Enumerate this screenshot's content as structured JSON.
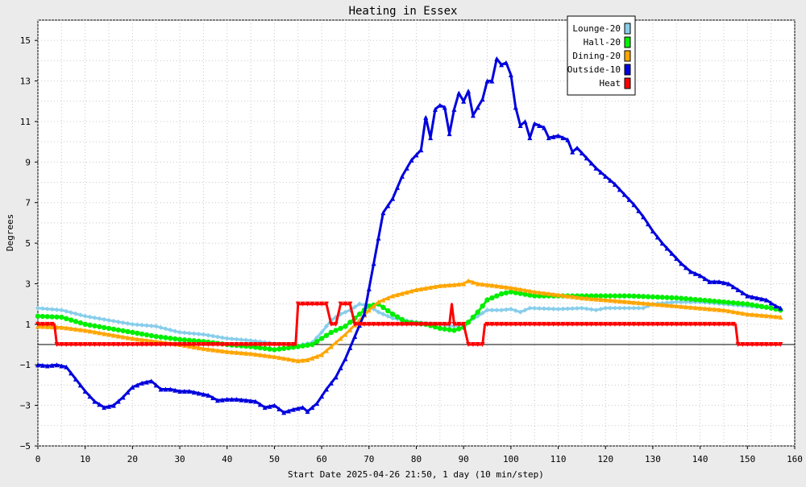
{
  "chart_data": {
    "type": "line",
    "title": "Heating in Essex",
    "xlabel": "Start Date 2025-04-26 21:50, 1 day (10 min/step)",
    "ylabel": "Degrees",
    "xlim": [
      0,
      160
    ],
    "ylim": [
      -5,
      16
    ],
    "x_ticks": [
      0,
      10,
      20,
      30,
      40,
      50,
      60,
      70,
      80,
      90,
      100,
      110,
      120,
      130,
      140,
      150,
      160
    ],
    "y_ticks": [
      -5,
      -3,
      -1,
      1,
      3,
      5,
      7,
      9,
      11,
      13,
      15
    ],
    "grid": true,
    "legend_position": "top-right",
    "series": [
      {
        "name": "Lounge-20",
        "color": "#87ceeb",
        "marker": "diamond",
        "points": [
          [
            0,
            1.8
          ],
          [
            5,
            1.7
          ],
          [
            10,
            1.4
          ],
          [
            15,
            1.2
          ],
          [
            20,
            1.0
          ],
          [
            25,
            0.9
          ],
          [
            30,
            0.6
          ],
          [
            35,
            0.5
          ],
          [
            40,
            0.3
          ],
          [
            45,
            0.2
          ],
          [
            50,
            0.05
          ],
          [
            55,
            -0.05
          ],
          [
            58,
            0.1
          ],
          [
            60,
            0.6
          ],
          [
            62,
            1.2
          ],
          [
            64,
            1.5
          ],
          [
            66,
            1.7
          ],
          [
            68,
            2.0
          ],
          [
            70,
            1.9
          ],
          [
            72,
            1.6
          ],
          [
            75,
            1.3
          ],
          [
            80,
            1.1
          ],
          [
            85,
            1.0
          ],
          [
            88,
            0.9
          ],
          [
            90,
            1.0
          ],
          [
            93,
            1.4
          ],
          [
            95,
            1.7
          ],
          [
            98,
            1.7
          ],
          [
            100,
            1.75
          ],
          [
            102,
            1.6
          ],
          [
            104,
            1.8
          ],
          [
            110,
            1.75
          ],
          [
            115,
            1.8
          ],
          [
            118,
            1.7
          ],
          [
            120,
            1.8
          ],
          [
            125,
            1.8
          ],
          [
            128,
            1.8
          ],
          [
            130,
            2.0
          ],
          [
            135,
            2.1
          ],
          [
            140,
            2.1
          ],
          [
            145,
            2.0
          ],
          [
            150,
            1.9
          ],
          [
            155,
            1.8
          ],
          [
            157,
            1.7
          ]
        ]
      },
      {
        "name": "Hall-20",
        "color": "#00ee00",
        "marker": "circle",
        "points": [
          [
            0,
            1.4
          ],
          [
            5,
            1.35
          ],
          [
            10,
            1.0
          ],
          [
            15,
            0.8
          ],
          [
            20,
            0.6
          ],
          [
            25,
            0.4
          ],
          [
            30,
            0.25
          ],
          [
            35,
            0.15
          ],
          [
            40,
            0.0
          ],
          [
            45,
            -0.1
          ],
          [
            50,
            -0.25
          ],
          [
            55,
            -0.1
          ],
          [
            58,
            0.0
          ],
          [
            60,
            0.3
          ],
          [
            62,
            0.6
          ],
          [
            65,
            0.9
          ],
          [
            68,
            1.5
          ],
          [
            70,
            1.9
          ],
          [
            72,
            2.0
          ],
          [
            75,
            1.5
          ],
          [
            78,
            1.1
          ],
          [
            82,
            1.0
          ],
          [
            85,
            0.8
          ],
          [
            88,
            0.7
          ],
          [
            90,
            0.85
          ],
          [
            93,
            1.6
          ],
          [
            95,
            2.2
          ],
          [
            98,
            2.5
          ],
          [
            100,
            2.6
          ],
          [
            105,
            2.4
          ],
          [
            110,
            2.4
          ],
          [
            115,
            2.4
          ],
          [
            120,
            2.4
          ],
          [
            125,
            2.4
          ],
          [
            130,
            2.35
          ],
          [
            135,
            2.3
          ],
          [
            140,
            2.2
          ],
          [
            145,
            2.1
          ],
          [
            150,
            2.0
          ],
          [
            155,
            1.8
          ],
          [
            157,
            1.7
          ]
        ]
      },
      {
        "name": "Dining-20",
        "color": "#ffa500",
        "marker": "triangle",
        "points": [
          [
            0,
            0.9
          ],
          [
            5,
            0.85
          ],
          [
            10,
            0.7
          ],
          [
            15,
            0.5
          ],
          [
            20,
            0.3
          ],
          [
            25,
            0.15
          ],
          [
            30,
            0.0
          ],
          [
            35,
            -0.2
          ],
          [
            40,
            -0.35
          ],
          [
            45,
            -0.45
          ],
          [
            50,
            -0.6
          ],
          [
            55,
            -0.8
          ],
          [
            57,
            -0.75
          ],
          [
            60,
            -0.5
          ],
          [
            62,
            -0.1
          ],
          [
            65,
            0.5
          ],
          [
            68,
            1.2
          ],
          [
            70,
            1.7
          ],
          [
            72,
            2.1
          ],
          [
            75,
            2.4
          ],
          [
            80,
            2.7
          ],
          [
            85,
            2.9
          ],
          [
            88,
            2.95
          ],
          [
            90,
            3.0
          ],
          [
            91,
            3.15
          ],
          [
            93,
            3.0
          ],
          [
            95,
            2.95
          ],
          [
            100,
            2.8
          ],
          [
            105,
            2.6
          ],
          [
            110,
            2.45
          ],
          [
            115,
            2.3
          ],
          [
            120,
            2.2
          ],
          [
            125,
            2.1
          ],
          [
            130,
            2.0
          ],
          [
            135,
            1.9
          ],
          [
            140,
            1.8
          ],
          [
            145,
            1.7
          ],
          [
            150,
            1.5
          ],
          [
            155,
            1.4
          ],
          [
            157,
            1.35
          ]
        ]
      },
      {
        "name": "Outside-10",
        "color": "#0000dd",
        "marker": "triangle",
        "points": [
          [
            0,
            -1.0
          ],
          [
            2,
            -1.05
          ],
          [
            4,
            -1.0
          ],
          [
            6,
            -1.1
          ],
          [
            8,
            -1.7
          ],
          [
            10,
            -2.3
          ],
          [
            12,
            -2.8
          ],
          [
            14,
            -3.1
          ],
          [
            16,
            -3.0
          ],
          [
            18,
            -2.6
          ],
          [
            20,
            -2.1
          ],
          [
            22,
            -1.9
          ],
          [
            24,
            -1.8
          ],
          [
            26,
            -2.2
          ],
          [
            28,
            -2.2
          ],
          [
            30,
            -2.3
          ],
          [
            32,
            -2.3
          ],
          [
            34,
            -2.4
          ],
          [
            36,
            -2.5
          ],
          [
            38,
            -2.75
          ],
          [
            40,
            -2.7
          ],
          [
            42,
            -2.7
          ],
          [
            44,
            -2.75
          ],
          [
            46,
            -2.8
          ],
          [
            48,
            -3.1
          ],
          [
            50,
            -3.0
          ],
          [
            52,
            -3.35
          ],
          [
            54,
            -3.2
          ],
          [
            56,
            -3.1
          ],
          [
            57,
            -3.3
          ],
          [
            59,
            -2.9
          ],
          [
            61,
            -2.2
          ],
          [
            63,
            -1.6
          ],
          [
            65,
            -0.7
          ],
          [
            67,
            0.4
          ],
          [
            69,
            1.5
          ],
          [
            71,
            4.0
          ],
          [
            73,
            6.5
          ],
          [
            75,
            7.2
          ],
          [
            77,
            8.3
          ],
          [
            79,
            9.1
          ],
          [
            81,
            9.6
          ],
          [
            82,
            11.2
          ],
          [
            83,
            10.2
          ],
          [
            84,
            11.6
          ],
          [
            85,
            11.8
          ],
          [
            86,
            11.7
          ],
          [
            87,
            10.4
          ],
          [
            88,
            11.6
          ],
          [
            89,
            12.4
          ],
          [
            90,
            12.0
          ],
          [
            91,
            12.5
          ],
          [
            92,
            11.3
          ],
          [
            93,
            11.7
          ],
          [
            94,
            12.1
          ],
          [
            95,
            13.0
          ],
          [
            96,
            13.0
          ],
          [
            97,
            14.1
          ],
          [
            98,
            13.8
          ],
          [
            99,
            13.9
          ],
          [
            100,
            13.3
          ],
          [
            101,
            11.7
          ],
          [
            102,
            10.8
          ],
          [
            103,
            11.0
          ],
          [
            104,
            10.2
          ],
          [
            105,
            10.9
          ],
          [
            106,
            10.8
          ],
          [
            107,
            10.7
          ],
          [
            108,
            10.2
          ],
          [
            110,
            10.3
          ],
          [
            112,
            10.1
          ],
          [
            113,
            9.5
          ],
          [
            114,
            9.7
          ],
          [
            116,
            9.2
          ],
          [
            118,
            8.7
          ],
          [
            120,
            8.3
          ],
          [
            122,
            7.9
          ],
          [
            124,
            7.4
          ],
          [
            126,
            6.9
          ],
          [
            128,
            6.3
          ],
          [
            130,
            5.6
          ],
          [
            132,
            5.0
          ],
          [
            134,
            4.5
          ],
          [
            136,
            4.0
          ],
          [
            138,
            3.6
          ],
          [
            140,
            3.4
          ],
          [
            142,
            3.1
          ],
          [
            144,
            3.1
          ],
          [
            146,
            3.0
          ],
          [
            148,
            2.7
          ],
          [
            150,
            2.4
          ],
          [
            152,
            2.3
          ],
          [
            154,
            2.2
          ],
          [
            156,
            1.9
          ],
          [
            157,
            1.8
          ]
        ]
      },
      {
        "name": "Heat",
        "color": "#ff0000",
        "marker": "triangle-down",
        "points": [
          [
            0,
            1
          ],
          [
            3.5,
            1
          ],
          [
            4,
            0
          ],
          [
            54.5,
            0
          ],
          [
            55,
            2
          ],
          [
            61,
            2
          ],
          [
            62,
            1
          ],
          [
            63,
            1
          ],
          [
            64,
            2
          ],
          [
            66,
            2
          ],
          [
            67,
            1
          ],
          [
            87,
            1
          ],
          [
            87.5,
            2
          ],
          [
            88,
            1
          ],
          [
            90,
            1
          ],
          [
            91,
            0
          ],
          [
            94,
            0
          ],
          [
            94.5,
            1
          ],
          [
            147.5,
            1
          ],
          [
            148,
            0
          ],
          [
            157,
            0
          ]
        ]
      }
    ]
  }
}
